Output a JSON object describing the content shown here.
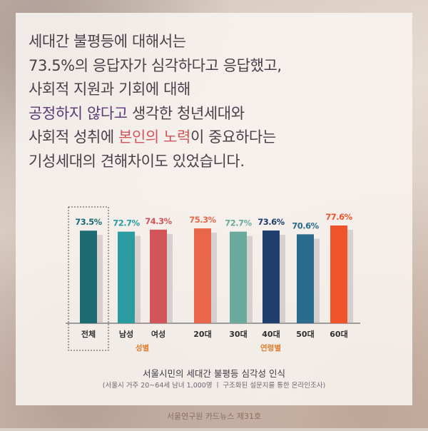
{
  "headline": {
    "l1": "세대간 불평등에 대해서는",
    "l2": "73.5%의 응답자가 심각하다고 응답했고,",
    "l3": "사회적 지원과 기회에 대해",
    "l4a": "공정하지 않다고",
    "l4b": " 생각한 청년세대와",
    "l5a": "사회적 성취에 ",
    "l5b": "본인의 노력",
    "l5c": "이 중요하다는",
    "l6": "기성세대의 견해차이도 있었습니다."
  },
  "chart_data": {
    "type": "bar",
    "title": "서울시민의 세대간 불평등 심각성 인식",
    "subtitle": "(서울시 거주 20~64세 남녀 1,000명 ㅣ 구조화된 설문지를 통한 온라인조사)",
    "categories": [
      "전체",
      "남성",
      "여성",
      "20대",
      "30대",
      "40대",
      "50대",
      "60대"
    ],
    "values": [
      73.5,
      72.7,
      74.3,
      75.3,
      72.7,
      73.6,
      70.6,
      77.6
    ],
    "value_labels": [
      "73.5%",
      "72.7%",
      "74.3%",
      "75.3%",
      "72.7%",
      "73.6%",
      "70.6%",
      "77.6%"
    ],
    "colors": [
      "#1e6b73",
      "#2a9ba0",
      "#d2555a",
      "#e8674a",
      "#6aaa9c",
      "#1f3e6e",
      "#2a6b8e",
      "#f0542b"
    ],
    "groups": [
      {
        "label": "성별",
        "from": 1,
        "to": 2
      },
      {
        "label": "연령별",
        "from": 3,
        "to": 7
      }
    ],
    "highlight_index": 0,
    "ylim": [
      0,
      100
    ],
    "group_label_color": "#e07b2c"
  },
  "footer": {
    "brand": "서울연구원 카드뉴스 제31호"
  }
}
